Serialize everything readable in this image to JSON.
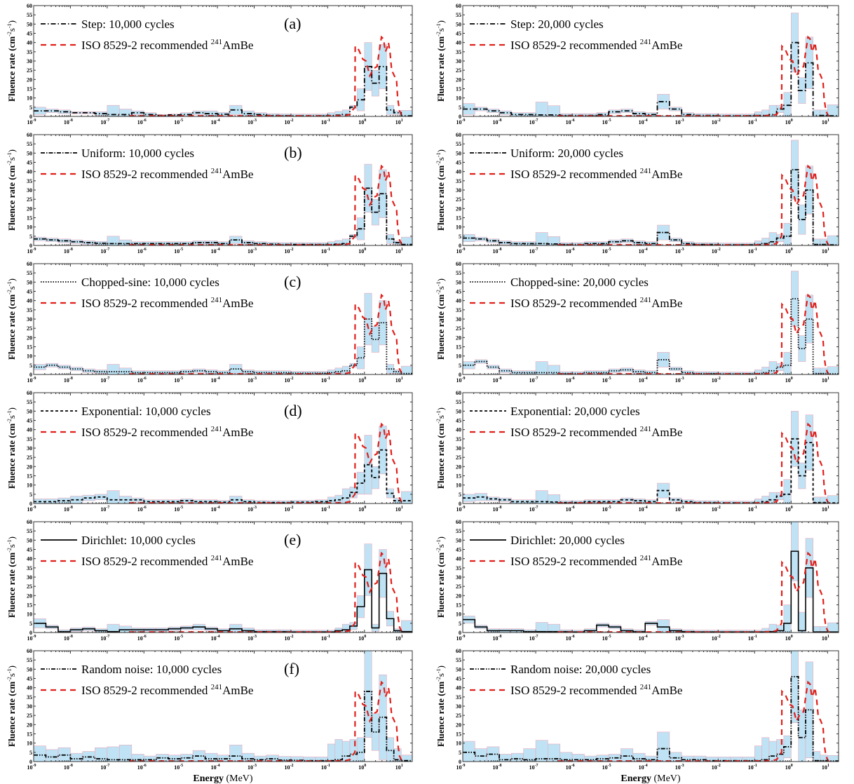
{
  "chart_data": [
    {
      "type": "area",
      "panel": "(a)",
      "column": "left",
      "legend": "Step: 10,000 cycles",
      "line": "dashdot",
      "value": [
        3,
        3,
        2.5,
        2,
        2,
        1.5,
        1,
        1,
        2,
        1,
        0.5,
        0.8,
        1,
        2,
        1.5,
        1.2,
        3.5,
        1.5,
        1,
        0.5,
        0.4,
        0.3,
        0.3,
        0.3,
        0.5,
        0.7,
        1,
        5,
        9,
        27,
        18,
        27,
        3.5,
        2,
        0.3
      ],
      "uncertainty": [
        2,
        1,
        1,
        0.5,
        0.5,
        1,
        5,
        3,
        1,
        1,
        0.5,
        0.5,
        1,
        1,
        1.5,
        1,
        2.5,
        1.5,
        1,
        1,
        1,
        1,
        1,
        1,
        1.5,
        2,
        2.5,
        1,
        6,
        13,
        7,
        12,
        2.5,
        1,
        3
      ]
    },
    {
      "type": "area",
      "panel": "",
      "column": "right",
      "legend": "Step: 20,000 cycles",
      "line": "dashdot",
      "value": [
        4,
        4,
        3,
        2,
        1,
        1,
        0.8,
        0.8,
        0.5,
        0.5,
        0.5,
        1,
        2.5,
        3,
        1.5,
        1,
        8,
        4,
        1,
        0.5,
        0.5,
        0.3,
        0.3,
        0.3,
        0.5,
        0.5,
        1,
        4,
        6,
        40,
        14,
        29,
        0.5,
        0.5,
        0.3
      ],
      "uncertainty": [
        3,
        1,
        1,
        1,
        1,
        1,
        7,
        5,
        1,
        1,
        1,
        1,
        1,
        1,
        1,
        1,
        4,
        1,
        1,
        1,
        1,
        1,
        1,
        1,
        2,
        3,
        5,
        2,
        7,
        16,
        7,
        14,
        3,
        3,
        6
      ]
    },
    {
      "type": "area",
      "panel": "(b)",
      "column": "left",
      "legend": "Uniform: 10,000 cycles",
      "line": "dashdot2",
      "value": [
        3.5,
        3,
        2.5,
        2,
        1.5,
        1.2,
        1,
        1,
        1,
        1,
        1,
        1,
        1,
        1.5,
        1.5,
        1,
        3,
        1.5,
        1,
        0.7,
        0.5,
        0.5,
        0.5,
        0.5,
        0.5,
        0.7,
        1,
        5,
        9,
        31,
        18,
        28,
        3.5,
        1.5,
        0.5
      ],
      "uncertainty": [
        1,
        1,
        1,
        1,
        1,
        1,
        4,
        2,
        1,
        1,
        1,
        1,
        1,
        1,
        1,
        1,
        2,
        1,
        1,
        1,
        1,
        1,
        1,
        1,
        1.5,
        2,
        2.5,
        1,
        6,
        13,
        7,
        13,
        2.5,
        1,
        4
      ]
    },
    {
      "type": "area",
      "panel": "",
      "column": "right",
      "legend": "Uniform: 20,000 cycles",
      "line": "dashdot2",
      "value": [
        4,
        3.5,
        2.5,
        1.5,
        1,
        1,
        1,
        0.8,
        0.5,
        0.5,
        1,
        1,
        2,
        2.5,
        1.5,
        1,
        7,
        3,
        1,
        0.5,
        0.5,
        0.3,
        0.3,
        0.3,
        0.5,
        1,
        2,
        4,
        5,
        41,
        14,
        30,
        0.5,
        0.5,
        0.3
      ],
      "uncertainty": [
        2,
        1,
        1,
        1,
        1,
        1,
        6,
        4,
        1,
        1,
        1,
        1,
        1,
        1,
        1,
        1,
        4,
        1,
        1,
        1,
        1,
        1,
        1,
        1,
        2,
        3,
        5,
        2,
        7,
        16,
        8,
        13,
        3,
        3,
        5
      ]
    },
    {
      "type": "area",
      "panel": "(c)",
      "column": "left",
      "legend": "Chopped-sine: 10,000 cycles",
      "line": "dotted",
      "value": [
        4,
        5,
        4,
        3,
        2,
        1.5,
        1.5,
        1.5,
        1,
        1,
        1,
        1,
        1.5,
        2,
        1.5,
        1,
        3,
        1.5,
        1,
        1,
        1,
        0.7,
        0.7,
        0.7,
        1,
        1.5,
        2,
        5,
        9,
        30,
        19,
        28,
        3,
        1.5,
        0.5
      ],
      "uncertainty": [
        1.5,
        1,
        1,
        1,
        1,
        1,
        4,
        2,
        1,
        1,
        1,
        1,
        1,
        1,
        1,
        1,
        2.5,
        1,
        1,
        1,
        1,
        1,
        1,
        1,
        1.5,
        2,
        2.5,
        1,
        6,
        14,
        7,
        12,
        2.5,
        1,
        4
      ]
    },
    {
      "type": "area",
      "panel": "",
      "column": "right",
      "legend": "Chopped-sine: 20,000 cycles",
      "line": "dotted",
      "value": [
        5,
        7,
        4,
        2,
        1,
        1,
        1,
        1,
        0.5,
        0.5,
        1,
        1,
        2,
        2.5,
        1.5,
        1,
        8,
        3,
        1,
        0.5,
        0.5,
        0.3,
        0.3,
        0.3,
        0.5,
        1,
        2,
        4,
        5,
        41,
        14,
        30,
        0.5,
        0.5,
        0.3
      ],
      "uncertainty": [
        2,
        1,
        1,
        1,
        1,
        1,
        6,
        4,
        1,
        1,
        1,
        1,
        1,
        1,
        1,
        1,
        4,
        1,
        1,
        1,
        1,
        1,
        1,
        1,
        2,
        3,
        5,
        2,
        7,
        15,
        7,
        13,
        3,
        3,
        4
      ]
    },
    {
      "type": "area",
      "panel": "(d)",
      "column": "left",
      "legend": "Exponential: 10,000 cycles",
      "line": "dashed",
      "value": [
        1,
        1,
        1.5,
        2,
        3,
        3.5,
        2,
        2,
        2,
        1,
        1,
        1,
        1.5,
        1,
        1,
        0.7,
        2,
        1,
        0.6,
        0.5,
        0.5,
        0.7,
        0.7,
        1,
        1.5,
        2,
        3,
        6,
        11,
        21,
        14,
        29,
        5.5,
        1.5,
        1.5
      ],
      "uncertainty": [
        1.5,
        1.5,
        1.5,
        2,
        1.5,
        1.5,
        5,
        2,
        1,
        1,
        1,
        1,
        1,
        1,
        1,
        1,
        2,
        1,
        1,
        1,
        1,
        1,
        1,
        1,
        2,
        2.5,
        5,
        3,
        6,
        16,
        6,
        13,
        2.5,
        1.5,
        5
      ]
    },
    {
      "type": "area",
      "panel": "",
      "column": "right",
      "legend": "Exponential: 20,000 cycles",
      "line": "dashed",
      "value": [
        3,
        3.5,
        2.5,
        2,
        1,
        1,
        1,
        0.8,
        0.5,
        0.5,
        1,
        1,
        1,
        2,
        1.5,
        1,
        7,
        2,
        1,
        0.5,
        0.5,
        0.3,
        0.3,
        0.3,
        0.5,
        1,
        2,
        4,
        5,
        35,
        15,
        33,
        0.5,
        0.5,
        0.3
      ],
      "uncertainty": [
        2,
        2,
        1,
        1,
        1,
        1,
        6,
        4,
        1,
        1,
        1,
        1,
        1,
        1,
        1,
        1,
        4,
        1,
        1,
        1,
        1,
        1,
        1,
        1,
        2,
        3,
        4,
        2,
        8,
        15,
        7,
        15,
        3,
        3,
        4
      ]
    },
    {
      "type": "area",
      "panel": "(e)",
      "column": "left",
      "legend": "Dirichlet: 10,000 cycles",
      "line": "solid",
      "value": [
        5,
        3,
        0.5,
        1.5,
        2,
        1,
        0.5,
        1.5,
        1.5,
        1.5,
        1.5,
        2,
        2.5,
        3,
        2,
        1,
        2,
        1,
        0.5,
        0.5,
        0.5,
        0.3,
        0.3,
        0.3,
        0.3,
        1,
        1.5,
        3.5,
        14,
        34,
        2.5,
        32,
        7.5,
        1,
        0.5
      ],
      "uncertainty": [
        2.5,
        1,
        1,
        1,
        1,
        1,
        4,
        2,
        1,
        1,
        1,
        1,
        1,
        1.5,
        1,
        1,
        2.5,
        1.5,
        1,
        1,
        1,
        1,
        1,
        1,
        1,
        1.5,
        3,
        2,
        6,
        14,
        2,
        13,
        4,
        1,
        6
      ]
    },
    {
      "type": "area",
      "panel": "",
      "column": "right",
      "legend": "Dirichlet: 20,000 cycles",
      "line": "solid",
      "value": [
        7,
        3,
        1,
        1,
        1,
        0.5,
        0.5,
        0.5,
        0.5,
        0.3,
        1,
        4,
        3,
        1,
        0.5,
        5,
        3,
        1,
        0.5,
        0.3,
        0.3,
        0.3,
        0.3,
        0.3,
        0.3,
        0.3,
        0.5,
        1,
        5,
        44,
        1,
        35,
        0.3,
        0.3,
        0.3
      ],
      "uncertainty": [
        2,
        1,
        1,
        1,
        1,
        1,
        5,
        4,
        1,
        1,
        1,
        1,
        1,
        1,
        1,
        1,
        4,
        1,
        1,
        1,
        1,
        1,
        1,
        1,
        1,
        2,
        4,
        3,
        10,
        16,
        10,
        16,
        3,
        3,
        5
      ]
    },
    {
      "type": "area",
      "panel": "(f)",
      "column": "left",
      "legend": "Random noise: 10,000 cycles",
      "line": "dashdotdot",
      "value": [
        3.5,
        2.5,
        3.5,
        1.5,
        2.5,
        1.5,
        1,
        1,
        1,
        1,
        2,
        1.5,
        2,
        3,
        1.5,
        1.5,
        3,
        1.5,
        1,
        1.5,
        0.8,
        0.7,
        0.5,
        0.5,
        0.5,
        1,
        3,
        4,
        5,
        38,
        16,
        24,
        6,
        1,
        0.5
      ],
      "uncertainty": [
        5,
        4,
        4,
        3,
        3,
        6,
        7,
        8,
        3,
        2,
        2,
        2,
        2,
        3,
        3,
        2,
        6,
        3,
        2,
        2,
        2,
        2,
        2,
        2,
        9,
        11,
        8,
        8,
        8,
        25,
        10,
        23,
        7,
        6,
        3
      ]
    },
    {
      "type": "area",
      "panel": "",
      "column": "right",
      "legend": "Random noise: 20,000 cycles",
      "line": "dashdotdot",
      "value": [
        5,
        3,
        4,
        1,
        1.5,
        1,
        1.5,
        1.5,
        1,
        1,
        1,
        1.5,
        2,
        3,
        1.5,
        1,
        7,
        2,
        1,
        1,
        0.5,
        0.5,
        0.5,
        0.5,
        0.5,
        1,
        3,
        4,
        8,
        46,
        13,
        28,
        0.5,
        0.5,
        0.3
      ],
      "uncertainty": [
        6,
        4,
        4,
        3,
        3,
        6,
        10,
        8,
        4,
        3,
        2,
        2,
        2,
        4,
        3,
        2,
        9,
        3,
        2,
        2,
        2,
        2,
        2,
        2,
        8,
        12,
        8,
        8,
        6,
        25,
        15,
        26,
        5,
        3,
        3
      ]
    }
  ],
  "bin_edges_MeV": [
    1e-09,
    2.15e-09,
    4.64e-09,
    1e-08,
    2.15e-08,
    4.64e-08,
    1e-07,
    2.15e-07,
    4.64e-07,
    1e-06,
    2.15e-06,
    4.64e-06,
    1e-05,
    2.15e-05,
    4.64e-05,
    0.0001,
    0.000215,
    0.000464,
    0.001,
    0.00215,
    0.00464,
    0.01,
    0.0215,
    0.0464,
    0.1,
    0.158,
    0.25,
    0.4,
    0.63,
    1,
    1.58,
    2.5,
    4,
    6.3,
    10,
    20
  ],
  "reference": {
    "legend": "ISO 8529-2 recommended ",
    "legend_sup": "241",
    "legend_tail": "AmBe",
    "x": [
      4e-07,
      0.1,
      0.3,
      0.4,
      0.5,
      0.55,
      0.56,
      0.7,
      0.9,
      1.1,
      1.4,
      1.8,
      2.2,
      2.6,
      2.9,
      3.3,
      3.7,
      4.1,
      4.5,
      5,
      5.5,
      6.5,
      7.5,
      8,
      9,
      10,
      11
    ],
    "y": [
      0.3,
      0.3,
      0.5,
      1,
      4,
      5,
      38,
      36,
      31,
      30,
      22,
      26,
      27,
      37,
      43,
      42,
      35,
      37,
      40,
      34,
      25,
      22,
      19,
      10,
      3,
      1,
      0
    ]
  },
  "axes": {
    "ylabel": "Fluence rate (cm",
    "ylabel_sup1": "-2",
    "ylabel_mid": "s",
    "ylabel_sup2": "-1",
    "ylabel_end": ")",
    "xlabel_bold": "Energy",
    "xlabel_rest": " (MeV)",
    "ylim": [
      0,
      60
    ],
    "yticks": [
      0,
      5,
      10,
      15,
      20,
      25,
      30,
      35,
      40,
      45,
      50,
      55,
      60
    ],
    "xlim": [
      1e-09,
      20
    ],
    "xscale": "log",
    "xtick_exponents": [
      "-9",
      "-8",
      "-7",
      "-6",
      "-5",
      "-4",
      "-3",
      "-2",
      "-1",
      "0",
      "1"
    ],
    "xtick_base": "10"
  },
  "colors": {
    "band": "#bfe3f5",
    "band_edge": "#e9a9b8",
    "reference": "#e0201b",
    "unfolded": "#000000"
  }
}
